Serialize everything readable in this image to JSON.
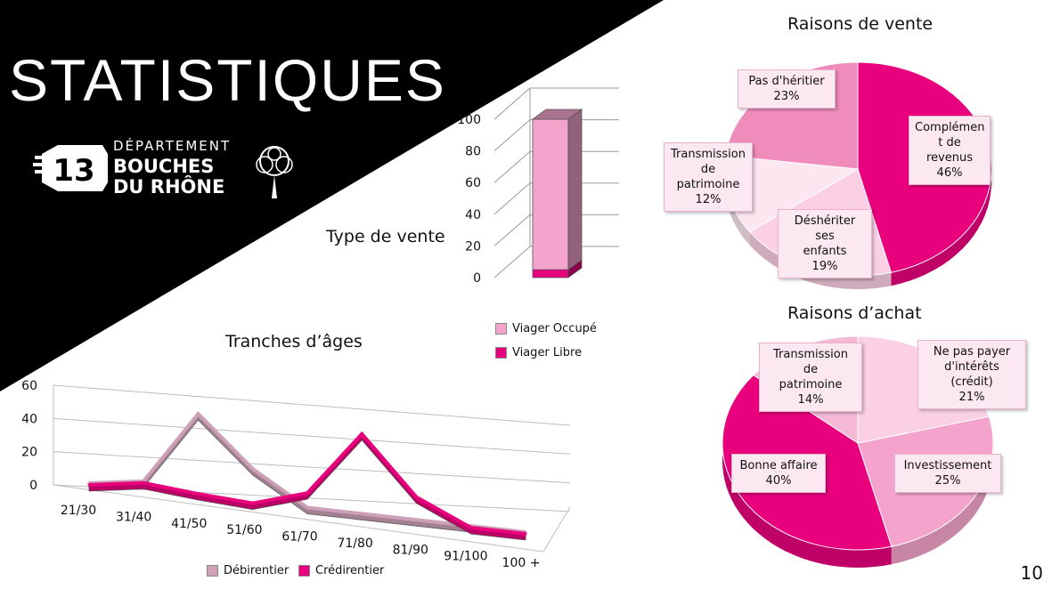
{
  "slide": {
    "title": "STATISTIQUES",
    "page_number": "10",
    "logo": {
      "number": "13",
      "department_label": "DÉPARTEMENT",
      "name_line1": "BOUCHES",
      "name_line2": "DU RHÔNE"
    }
  },
  "colors": {
    "magenta": "#e8007d",
    "pink": "#f4a4cc",
    "light_pink": "#fbd0e4",
    "mauve": "#cda0b8",
    "black": "#000000"
  },
  "chart_data": [
    {
      "type": "pie",
      "title": "Raisons de vente",
      "slices": [
        {
          "label": "Complément de revenus",
          "label_lines": [
            "Complémen",
            "t de revenus"
          ],
          "value": 46,
          "pct": "46%",
          "color": "#e8007d"
        },
        {
          "label": "Déshériter ses enfants",
          "label_lines": [
            "Déshériter ses",
            "enfants"
          ],
          "value": 19,
          "pct": "19%",
          "color": "#fbd0e4"
        },
        {
          "label": "Transmission de patrimoine",
          "label_lines": [
            "Transmission",
            "de patrimoine"
          ],
          "value": 12,
          "pct": "12%",
          "color": "#fce6f0"
        },
        {
          "label": "Pas d'héritier",
          "label_lines": [
            "Pas d'héritier"
          ],
          "value": 23,
          "pct": "23%",
          "color": "#f08cbc"
        }
      ]
    },
    {
      "type": "pie",
      "title": "Raisons d’achat",
      "slices": [
        {
          "label": "Ne pas payer d'intérêts (crédit)",
          "label_lines": [
            "Ne pas payer",
            "d'intérêts (crédit)"
          ],
          "value": 21,
          "pct": "21%",
          "color": "#fbd0e4"
        },
        {
          "label": "Investissement",
          "label_lines": [
            "Investissement"
          ],
          "value": 25,
          "pct": "25%",
          "color": "#f4a4cc"
        },
        {
          "label": "Bonne affaire",
          "label_lines": [
            "Bonne affaire"
          ],
          "value": 40,
          "pct": "40%",
          "color": "#e8007d"
        },
        {
          "label": "Transmission de patrimoine",
          "label_lines": [
            "Transmission de",
            "patrimoine"
          ],
          "value": 14,
          "pct": "14%",
          "color": "#f5b9d6"
        }
      ]
    },
    {
      "type": "bar",
      "title": "Type de vente",
      "stacked": true,
      "ylim": [
        0,
        100
      ],
      "yticks": [
        "0",
        "20",
        "40",
        "60",
        "80",
        "100"
      ],
      "series": [
        {
          "name": "Viager Libre",
          "values": [
            5
          ],
          "color": "#e8007d"
        },
        {
          "name": "Viager Occupé",
          "values": [
            95
          ],
          "color": "#f4a4cc"
        }
      ],
      "grid": true
    },
    {
      "type": "line",
      "title": "Tranches d’âges",
      "categories": [
        "21/30",
        "31/40",
        "41/50",
        "51/60",
        "61/70",
        "71/80",
        "81/90",
        "91/100",
        "100 +"
      ],
      "ylim": [
        0,
        60
      ],
      "yticks": [
        "0",
        "20",
        "40",
        "60"
      ],
      "series": [
        {
          "name": "Débirentier",
          "values": [
            0,
            5,
            50,
            20,
            0,
            0,
            0,
            0,
            0
          ],
          "color": "#cda0b8"
        },
        {
          "name": "Crédirentier",
          "values": [
            0,
            5,
            2,
            0,
            10,
            50,
            15,
            0,
            0
          ],
          "color": "#e8007d"
        }
      ],
      "grid": true
    }
  ]
}
